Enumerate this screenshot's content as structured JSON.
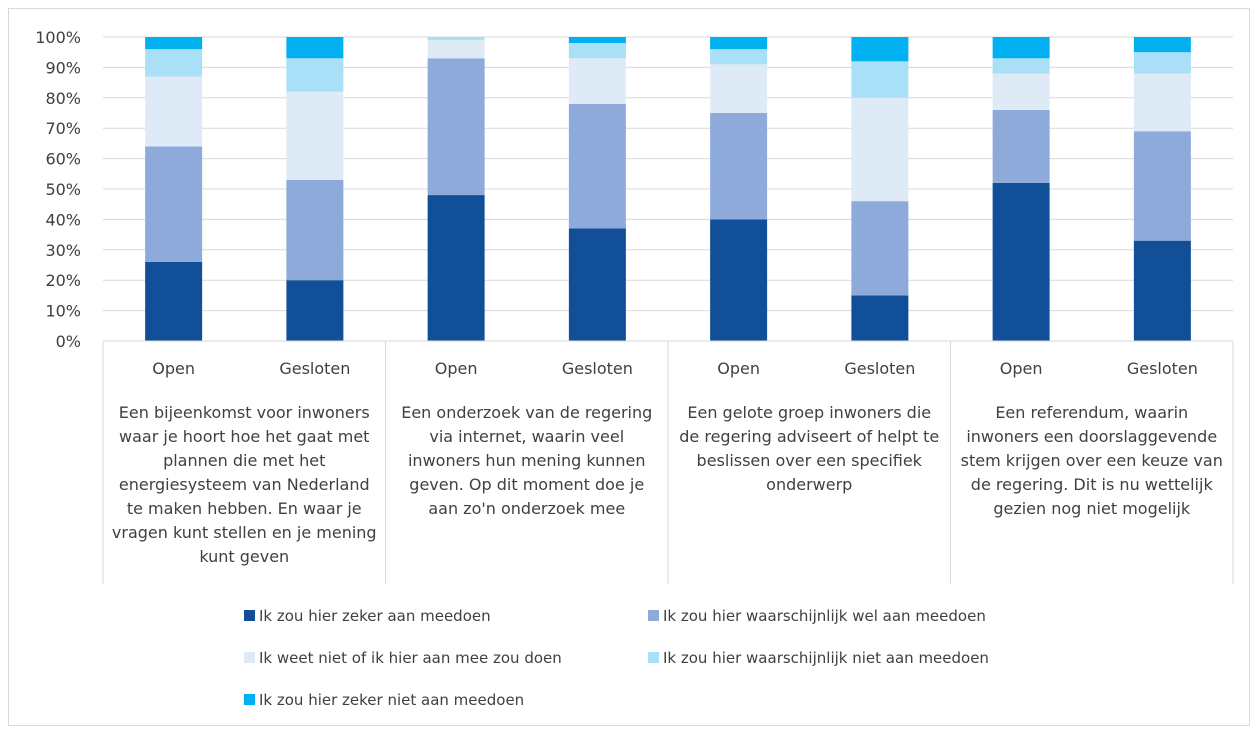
{
  "chart_data": {
    "type": "bar",
    "stacked": true,
    "title": "",
    "xlabel": "",
    "ylabel": "",
    "ylim": [
      0,
      100
    ],
    "y_ticks": [
      "0%",
      "10%",
      "20%",
      "30%",
      "40%",
      "50%",
      "60%",
      "70%",
      "80%",
      "90%",
      "100%"
    ],
    "grid": true,
    "legend_position": "bottom",
    "groups": [
      {
        "label": "Een bijeenkomst voor inwoners waar je hoort hoe het gaat met plannen die met het energiesysteem van Nederland te maken hebben. En waar je vragen kunt stellen en je mening kunt geven",
        "lines": [
          "Een bijeenkomst voor inwoners",
          "waar je hoort hoe het gaat met",
          "plannen die met het",
          "energiesysteem van Nederland",
          "te maken hebben. En waar je",
          "vragen kunt stellen en je mening",
          "kunt geven"
        ]
      },
      {
        "label": "Een onderzoek van de regering via internet, waarin veel inwoners hun mening kunnen geven. Op dit moment doe je aan zo'n onderzoek mee",
        "lines": [
          "Een onderzoek van de regering",
          "via internet, waarin veel",
          "inwoners hun mening kunnen",
          "geven. Op dit moment doe je",
          "aan zo'n onderzoek mee"
        ]
      },
      {
        "label": "Een gelote groep inwoners die de regering adviseert of helpt te beslissen over een specifiek onderwerp",
        "lines": [
          "Een gelote groep inwoners die",
          "de regering adviseert of helpt te",
          "beslissen over een specifiek",
          "onderwerp"
        ]
      },
      {
        "label": "Een referendum, waarin inwoners een doorslaggevende stem krijgen over een keuze van de regering. Dit is nu wettelijk gezien nog niet mogelijk",
        "lines": [
          "Een referendum, waarin",
          "inwoners een doorslaggevende",
          "stem krijgen over een keuze van",
          "de regering. Dit is nu wettelijk",
          "gezien nog niet mogelijk"
        ]
      }
    ],
    "categories": [
      "Open",
      "Gesloten",
      "Open",
      "Gesloten",
      "Open",
      "Gesloten",
      "Open",
      "Gesloten"
    ],
    "series": [
      {
        "name": "Ik zou hier zeker aan meedoen",
        "color": "#124f99",
        "values": [
          26,
          20,
          48,
          37,
          40,
          15,
          52,
          33
        ]
      },
      {
        "name": "Ik zou hier waarschijnlijk wel aan meedoen",
        "color": "#8eaadb",
        "values": [
          38,
          33,
          45,
          41,
          35,
          31,
          24,
          36
        ]
      },
      {
        "name": "Ik weet niet of ik hier aan mee zou doen",
        "color": "#deebf7",
        "values": [
          23,
          29,
          6,
          15,
          16,
          34,
          12,
          19
        ]
      },
      {
        "name": "Ik zou hier waarschijnlijk niet aan meedoen",
        "color": "#a9e0f7",
        "values": [
          9,
          11,
          1,
          5,
          5,
          12,
          5,
          7
        ]
      },
      {
        "name": "Ik zou hier zeker niet aan meedoen",
        "color": "#00b0f0",
        "values": [
          4,
          7,
          0.5,
          2,
          4,
          8,
          7,
          5
        ]
      }
    ]
  }
}
